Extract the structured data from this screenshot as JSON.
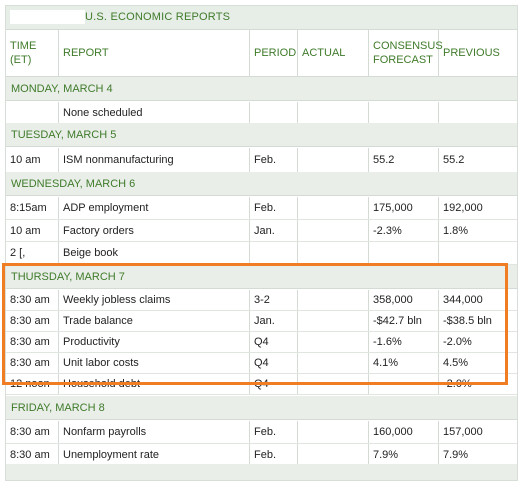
{
  "title": "U.S. ECONOMIC REPORTS",
  "headers": {
    "time": "TIME\n(ET)",
    "report": "REPORT",
    "period": "PERIOD",
    "actual": "ACTUAL",
    "consensus": "CONSENSUS\nFORECAST",
    "previous": "PREVIOUS"
  },
  "days": [
    {
      "label": "MONDAY, MARCH 4",
      "rows": [
        {
          "time": "",
          "report": "None scheduled",
          "period": "",
          "actual": "",
          "consensus": "",
          "previous": ""
        }
      ]
    },
    {
      "label": "TUESDAY, MARCH 5",
      "rows": [
        {
          "time": "10 am",
          "report": "ISM nonmanufacturing",
          "period": "Feb.",
          "actual": "",
          "consensus": "55.2",
          "previous": "55.2"
        }
      ]
    },
    {
      "label": "WEDNESDAY, MARCH 6",
      "rows": [
        {
          "time": "8:15am",
          "report": "ADP employment",
          "period": "Feb.",
          "actual": "",
          "consensus": "175,000",
          "previous": "192,000"
        },
        {
          "time": "10 am",
          "report": "Factory orders",
          "period": "Jan.",
          "actual": "",
          "consensus": "-2.3%",
          "previous": "1.8%"
        },
        {
          "time": "2 [,",
          "report": "Beige book",
          "period": "",
          "actual": "",
          "consensus": "",
          "previous": ""
        }
      ]
    },
    {
      "label": "THURSDAY, MARCH 7",
      "rows": [
        {
          "time": "8:30 am",
          "report": "Weekly jobless claims",
          "period": "3-2",
          "actual": "",
          "consensus": "358,000",
          "previous": "344,000"
        },
        {
          "time": "8:30 am",
          "report": "Trade balance",
          "period": "Jan.",
          "actual": "",
          "consensus": "-$42.7 bln",
          "previous": "-$38.5 bln"
        },
        {
          "time": "8:30 am",
          "report": "Productivity",
          "period": "Q4",
          "actual": "",
          "consensus": "-1.6%",
          "previous": "-2.0%"
        },
        {
          "time": "8:30 am",
          "report": "Unit labor costs",
          "period": "Q4",
          "actual": "",
          "consensus": "4.1%",
          "previous": "4.5%"
        },
        {
          "time": "12 noon",
          "report": "Household debt",
          "period": "Q4",
          "actual": "",
          "consensus": "--",
          "previous": "-2.0%"
        }
      ]
    },
    {
      "label": "FRIDAY, MARCH 8",
      "rows": [
        {
          "time": "8:30 am",
          "report": "Nonfarm payrolls",
          "period": "Feb.",
          "actual": "",
          "consensus": "160,000",
          "previous": "157,000"
        },
        {
          "time": "8:30 am",
          "report": "Unemployment rate",
          "period": "Feb.",
          "actual": "",
          "consensus": "7.9%",
          "previous": "7.9%"
        }
      ]
    }
  ],
  "colors": {
    "title_green": "#3f7b2a",
    "section_bg": "#e9eee9",
    "highlight": "#f07d22"
  }
}
